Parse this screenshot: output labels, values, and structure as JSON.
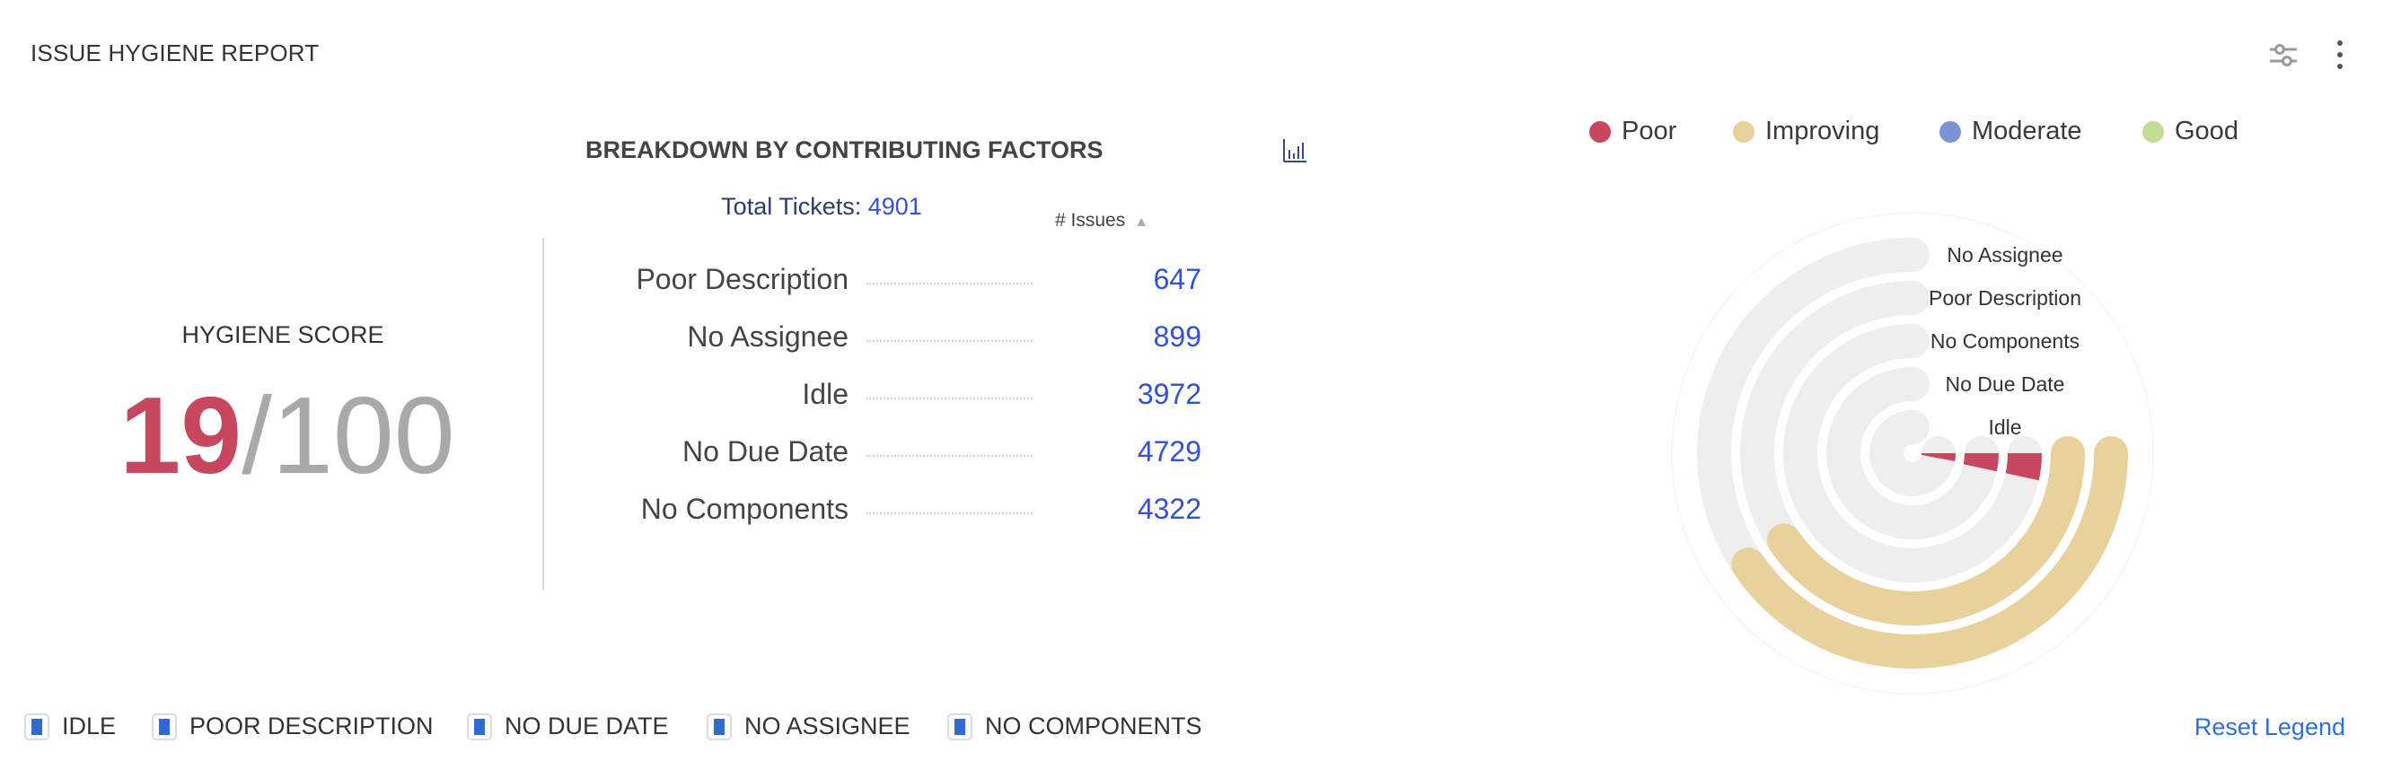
{
  "header": {
    "title": "ISSUE HYGIENE REPORT",
    "filter_icon": "sliders-icon",
    "menu_icon": "kebab-menu-icon"
  },
  "score": {
    "label": "HYGIENE SCORE",
    "value": "19",
    "separator_total": "/100",
    "color": "#c7475f"
  },
  "breakdown": {
    "title": "BREAKDOWN BY CONTRIBUTING FACTORS",
    "chart_toggle_icon": "bar-chart-icon",
    "total_label": "Total Tickets:",
    "total_value": "4901",
    "column_header": "# Issues",
    "sort_icon": "sort-ascending-icon",
    "rows": [
      {
        "label": "Poor Description",
        "value": "647"
      },
      {
        "label": "No Assignee",
        "value": "899"
      },
      {
        "label": "Idle",
        "value": "3972"
      },
      {
        "label": "No Due Date",
        "value": "4729"
      },
      {
        "label": "No Components",
        "value": "4322"
      }
    ]
  },
  "legend": [
    {
      "label": "Poor",
      "color": "#c7475f"
    },
    {
      "label": "Improving",
      "color": "#e9d19b"
    },
    {
      "label": "Moderate",
      "color": "#7b92d4"
    },
    {
      "label": "Good",
      "color": "#c5dd93"
    }
  ],
  "chart_data": {
    "type": "radial-bar",
    "track_color": "#eeeeee",
    "series": [
      {
        "label": "No Assignee",
        "score_pct": 54,
        "category": "Improving",
        "color": "#e9d19b"
      },
      {
        "label": "Poor Description",
        "score_pct": 54,
        "category": "Improving",
        "color": "#e9d19b"
      },
      {
        "label": "No Components",
        "score_pct": 4.5,
        "category": "Poor",
        "color": "#c7475f"
      },
      {
        "label": "No Due Date",
        "score_pct": 4.5,
        "category": "Poor",
        "color": "#c7475f"
      },
      {
        "label": "Idle",
        "score_pct": 4,
        "category": "Poor",
        "color": "#c7475f"
      }
    ]
  },
  "bottom_legend": {
    "items": [
      {
        "label": "IDLE",
        "checked": true
      },
      {
        "label": "POOR DESCRIPTION",
        "checked": true
      },
      {
        "label": "NO DUE DATE",
        "checked": true
      },
      {
        "label": "NO ASSIGNEE",
        "checked": true
      },
      {
        "label": "NO COMPONENTS",
        "checked": true
      }
    ],
    "reset_label": "Reset Legend"
  }
}
